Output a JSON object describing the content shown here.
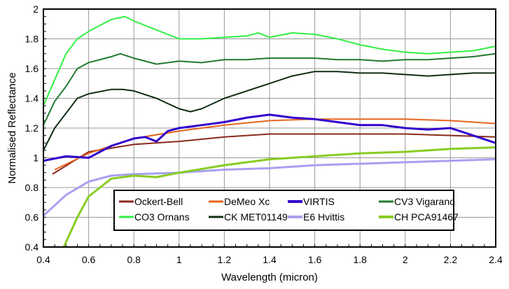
{
  "chart_data": {
    "type": "line",
    "title": "",
    "xlabel": "Wavelength (micron)",
    "ylabel": "Normalised Reflectance",
    "xlim": [
      0.4,
      2.4
    ],
    "ylim": [
      0.4,
      2.0
    ],
    "xticks": [
      "0.4",
      "0.6",
      "0.8",
      "1",
      "1.2",
      "1.4",
      "1.6",
      "1.8",
      "2",
      "2.2",
      "2.4"
    ],
    "yticks": [
      "0.4",
      "0.6",
      "0.8",
      "1",
      "1.2",
      "1.4",
      "1.6",
      "1.8",
      "2"
    ],
    "grid": true,
    "legend_placement": "bottom-right",
    "series": [
      {
        "name": "Ockert-Bell",
        "color": "#8b2a1a",
        "width": 2,
        "x": [
          0.44,
          0.6,
          0.8,
          1.0,
          1.2,
          1.4,
          1.6,
          1.8,
          2.0,
          2.2,
          2.4
        ],
        "y": [
          0.89,
          1.04,
          1.09,
          1.11,
          1.14,
          1.16,
          1.16,
          1.16,
          1.16,
          1.15,
          1.14
        ]
      },
      {
        "name": "DeMeo Xc",
        "color": "#e8641e",
        "width": 2,
        "x": [
          0.45,
          0.6,
          0.8,
          1.0,
          1.2,
          1.4,
          1.6,
          1.8,
          2.0,
          2.2,
          2.4
        ],
        "y": [
          0.92,
          1.03,
          1.13,
          1.18,
          1.22,
          1.25,
          1.26,
          1.26,
          1.26,
          1.25,
          1.23
        ]
      },
      {
        "name": "VIRTIS",
        "color": "#3300cc",
        "width": 3,
        "x": [
          0.4,
          0.5,
          0.6,
          0.7,
          0.8,
          0.85,
          0.9,
          0.95,
          1.0,
          1.1,
          1.2,
          1.3,
          1.4,
          1.5,
          1.6,
          1.7,
          1.8,
          1.9,
          2.0,
          2.1,
          2.2,
          2.3,
          2.4
        ],
        "y": [
          0.98,
          1.01,
          1.0,
          1.08,
          1.13,
          1.14,
          1.11,
          1.18,
          1.2,
          1.22,
          1.24,
          1.27,
          1.29,
          1.27,
          1.26,
          1.24,
          1.22,
          1.22,
          1.2,
          1.19,
          1.2,
          1.15,
          1.1
        ]
      },
      {
        "name": "CV3 Vigarano",
        "color": "#1f7a2e",
        "width": 2,
        "x": [
          0.4,
          0.45,
          0.5,
          0.55,
          0.6,
          0.7,
          0.74,
          0.8,
          0.9,
          1.0,
          1.1,
          1.2,
          1.3,
          1.4,
          1.5,
          1.6,
          1.7,
          1.8,
          1.9,
          2.0,
          2.1,
          2.2,
          2.3,
          2.4
        ],
        "y": [
          1.22,
          1.38,
          1.48,
          1.6,
          1.64,
          1.68,
          1.7,
          1.67,
          1.63,
          1.65,
          1.64,
          1.66,
          1.66,
          1.67,
          1.67,
          1.67,
          1.66,
          1.66,
          1.65,
          1.66,
          1.66,
          1.67,
          1.68,
          1.7
        ]
      },
      {
        "name": "CO3 Ornans",
        "color": "#33ee44",
        "width": 2,
        "x": [
          0.4,
          0.5,
          0.55,
          0.6,
          0.7,
          0.76,
          0.8,
          0.9,
          1.0,
          1.1,
          1.2,
          1.3,
          1.35,
          1.4,
          1.5,
          1.6,
          1.7,
          1.8,
          1.9,
          2.0,
          2.1,
          2.2,
          2.3,
          2.4
        ],
        "y": [
          1.35,
          1.7,
          1.8,
          1.85,
          1.93,
          1.95,
          1.92,
          1.86,
          1.8,
          1.8,
          1.81,
          1.82,
          1.84,
          1.81,
          1.84,
          1.83,
          1.8,
          1.76,
          1.73,
          1.71,
          1.7,
          1.71,
          1.72,
          1.75
        ]
      },
      {
        "name": "CK MET01149",
        "color": "#0f2f14",
        "width": 2,
        "x": [
          0.4,
          0.45,
          0.5,
          0.55,
          0.6,
          0.7,
          0.75,
          0.8,
          0.9,
          1.0,
          1.05,
          1.1,
          1.2,
          1.3,
          1.4,
          1.5,
          1.6,
          1.7,
          1.8,
          1.9,
          2.0,
          2.1,
          2.2,
          2.3,
          2.4
        ],
        "y": [
          1.05,
          1.2,
          1.3,
          1.4,
          1.43,
          1.46,
          1.46,
          1.45,
          1.4,
          1.33,
          1.31,
          1.33,
          1.4,
          1.45,
          1.5,
          1.55,
          1.58,
          1.58,
          1.57,
          1.57,
          1.56,
          1.55,
          1.56,
          1.57,
          1.57
        ]
      },
      {
        "name": "E6 Hvittis",
        "color": "#a8a0f0",
        "width": 3,
        "x": [
          0.4,
          0.5,
          0.6,
          0.7,
          0.8,
          1.0,
          1.2,
          1.4,
          1.6,
          1.8,
          2.0,
          2.2,
          2.4
        ],
        "y": [
          0.61,
          0.75,
          0.84,
          0.88,
          0.89,
          0.9,
          0.92,
          0.93,
          0.95,
          0.96,
          0.97,
          0.98,
          0.99
        ]
      },
      {
        "name": "CH PCA91467",
        "color": "#88cc22",
        "width": 3,
        "x": [
          0.49,
          0.55,
          0.6,
          0.7,
          0.8,
          0.9,
          1.0,
          1.2,
          1.4,
          1.6,
          1.8,
          2.0,
          2.2,
          2.4
        ],
        "y": [
          0.4,
          0.6,
          0.74,
          0.86,
          0.88,
          0.87,
          0.9,
          0.95,
          0.99,
          1.01,
          1.03,
          1.04,
          1.06,
          1.07
        ]
      }
    ]
  }
}
